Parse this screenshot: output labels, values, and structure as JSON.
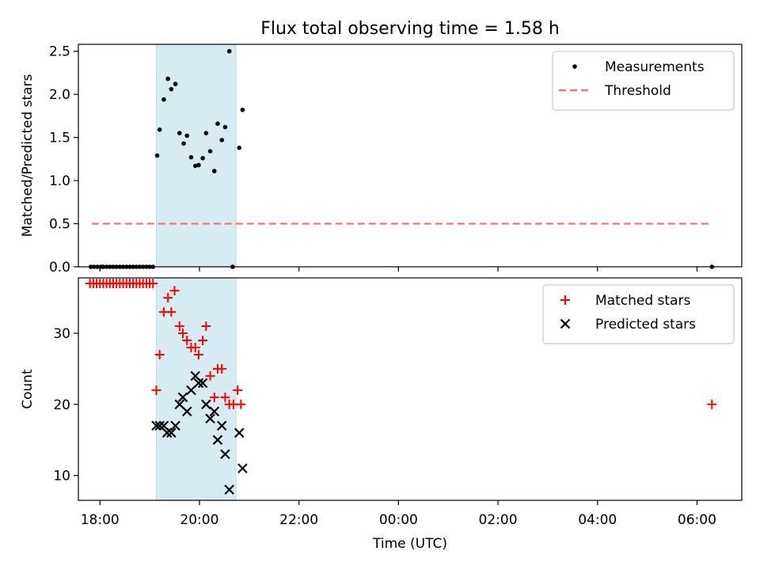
{
  "title": "Flux total observing time = 1.58 h",
  "chart_data": [
    {
      "type": "scatter",
      "panel": "top",
      "ylabel": "Matched/Predicted stars",
      "xlim": [
        "17:34",
        "06:54"
      ],
      "ylim": [
        0,
        2.58
      ],
      "yticks": [
        "0.0",
        "0.5",
        "1.0",
        "1.5",
        "2.0",
        "2.5"
      ],
      "grid": false,
      "legend": "top-right",
      "shaded_interval": {
        "x": [
          "19:08",
          "20:44"
        ],
        "color": "#add8e6"
      },
      "series": [
        {
          "name": "Measurements",
          "marker": "dot",
          "color": "#000000",
          "points": [
            [
              "17:49",
              0.0
            ],
            [
              "17:53",
              0.0
            ],
            [
              "17:57",
              0.0
            ],
            [
              "18:01",
              0.0
            ],
            [
              "18:04",
              0.0
            ],
            [
              "18:08",
              0.0
            ],
            [
              "18:12",
              0.0
            ],
            [
              "18:16",
              0.0
            ],
            [
              "18:20",
              0.0
            ],
            [
              "18:24",
              0.0
            ],
            [
              "18:28",
              0.0
            ],
            [
              "18:32",
              0.0
            ],
            [
              "18:36",
              0.0
            ],
            [
              "18:40",
              0.0
            ],
            [
              "18:44",
              0.0
            ],
            [
              "18:48",
              0.0
            ],
            [
              "18:52",
              0.0
            ],
            [
              "18:56",
              0.0
            ],
            [
              "19:00",
              0.0
            ],
            [
              "19:04",
              0.0
            ],
            [
              "19:09",
              1.29
            ],
            [
              "19:12",
              1.59
            ],
            [
              "19:17",
              1.94
            ],
            [
              "19:22",
              2.18
            ],
            [
              "19:26",
              2.06
            ],
            [
              "19:31",
              2.12
            ],
            [
              "19:36",
              1.55
            ],
            [
              "19:41",
              1.43
            ],
            [
              "19:45",
              1.52
            ],
            [
              "19:50",
              1.27
            ],
            [
              "19:55",
              1.17
            ],
            [
              "19:59",
              1.18
            ],
            [
              "20:04",
              1.26
            ],
            [
              "20:08",
              1.55
            ],
            [
              "20:13",
              1.34
            ],
            [
              "20:18",
              1.11
            ],
            [
              "20:22",
              1.66
            ],
            [
              "20:27",
              1.47
            ],
            [
              "20:31",
              1.62
            ],
            [
              "20:36",
              2.5
            ],
            [
              "20:40",
              0.0
            ],
            [
              "20:48",
              1.38
            ],
            [
              "20:52",
              1.82
            ],
            [
              "06:18",
              0.0
            ]
          ]
        },
        {
          "name": "Threshold",
          "marker": "dashed-line",
          "color": "#ff6b6b",
          "points": [
            [
              "17:50",
              0.5
            ],
            [
              "06:16",
              0.5
            ]
          ]
        }
      ]
    },
    {
      "type": "scatter",
      "panel": "bottom",
      "xlabel": "Time (UTC)",
      "ylabel": "Count",
      "xlim": [
        "17:34",
        "06:54"
      ],
      "ylim": [
        6.5,
        37.8
      ],
      "xticks": [
        "18:00",
        "20:00",
        "22:00",
        "00:00",
        "02:00",
        "04:00",
        "06:00"
      ],
      "yticks": [
        "10",
        "20",
        "30"
      ],
      "grid": false,
      "legend": "top-right",
      "shaded_interval": {
        "x": [
          "19:08",
          "20:44"
        ],
        "color": "#add8e6"
      },
      "series": [
        {
          "name": "Matched stars",
          "marker": "plus",
          "color": "#ff0000",
          "points": [
            [
              "17:48",
              37
            ],
            [
              "17:52",
              37
            ],
            [
              "17:56",
              37
            ],
            [
              "18:00",
              37
            ],
            [
              "18:04",
              37
            ],
            [
              "18:08",
              37
            ],
            [
              "18:12",
              37
            ],
            [
              "18:16",
              37
            ],
            [
              "18:20",
              37
            ],
            [
              "18:24",
              37
            ],
            [
              "18:28",
              37
            ],
            [
              "18:32",
              37
            ],
            [
              "18:36",
              37
            ],
            [
              "18:40",
              37
            ],
            [
              "18:44",
              37
            ],
            [
              "18:48",
              37
            ],
            [
              "18:52",
              37
            ],
            [
              "18:56",
              37
            ],
            [
              "19:00",
              37
            ],
            [
              "19:04",
              37
            ],
            [
              "19:08",
              22
            ],
            [
              "19:12",
              27
            ],
            [
              "19:17",
              33
            ],
            [
              "19:22",
              35
            ],
            [
              "19:26",
              33
            ],
            [
              "19:30",
              36
            ],
            [
              "19:36",
              31
            ],
            [
              "19:40",
              30
            ],
            [
              "19:45",
              29
            ],
            [
              "19:50",
              28
            ],
            [
              "19:55",
              28
            ],
            [
              "19:59",
              27
            ],
            [
              "20:04",
              29
            ],
            [
              "20:08",
              31
            ],
            [
              "20:13",
              24
            ],
            [
              "20:18",
              21
            ],
            [
              "20:22",
              25
            ],
            [
              "20:27",
              25
            ],
            [
              "20:31",
              21
            ],
            [
              "20:36",
              20
            ],
            [
              "20:41",
              20
            ],
            [
              "20:46",
              22
            ],
            [
              "20:50",
              20
            ],
            [
              "06:18",
              20
            ]
          ]
        },
        {
          "name": "Predicted stars",
          "marker": "x",
          "color": "#000000",
          "points": [
            [
              "19:08",
              17
            ],
            [
              "19:12",
              17
            ],
            [
              "19:17",
              17
            ],
            [
              "19:21",
              16
            ],
            [
              "19:26",
              16
            ],
            [
              "19:31",
              17
            ],
            [
              "19:36",
              20
            ],
            [
              "19:40",
              21
            ],
            [
              "19:45",
              19
            ],
            [
              "19:50",
              22
            ],
            [
              "19:55",
              24
            ],
            [
              "19:59",
              23
            ],
            [
              "20:04",
              23
            ],
            [
              "20:08",
              20
            ],
            [
              "20:13",
              18
            ],
            [
              "20:18",
              19
            ],
            [
              "20:22",
              15
            ],
            [
              "20:27",
              17
            ],
            [
              "20:31",
              13
            ],
            [
              "20:36",
              8
            ],
            [
              "20:48",
              16
            ],
            [
              "20:52",
              11
            ]
          ]
        }
      ]
    }
  ]
}
